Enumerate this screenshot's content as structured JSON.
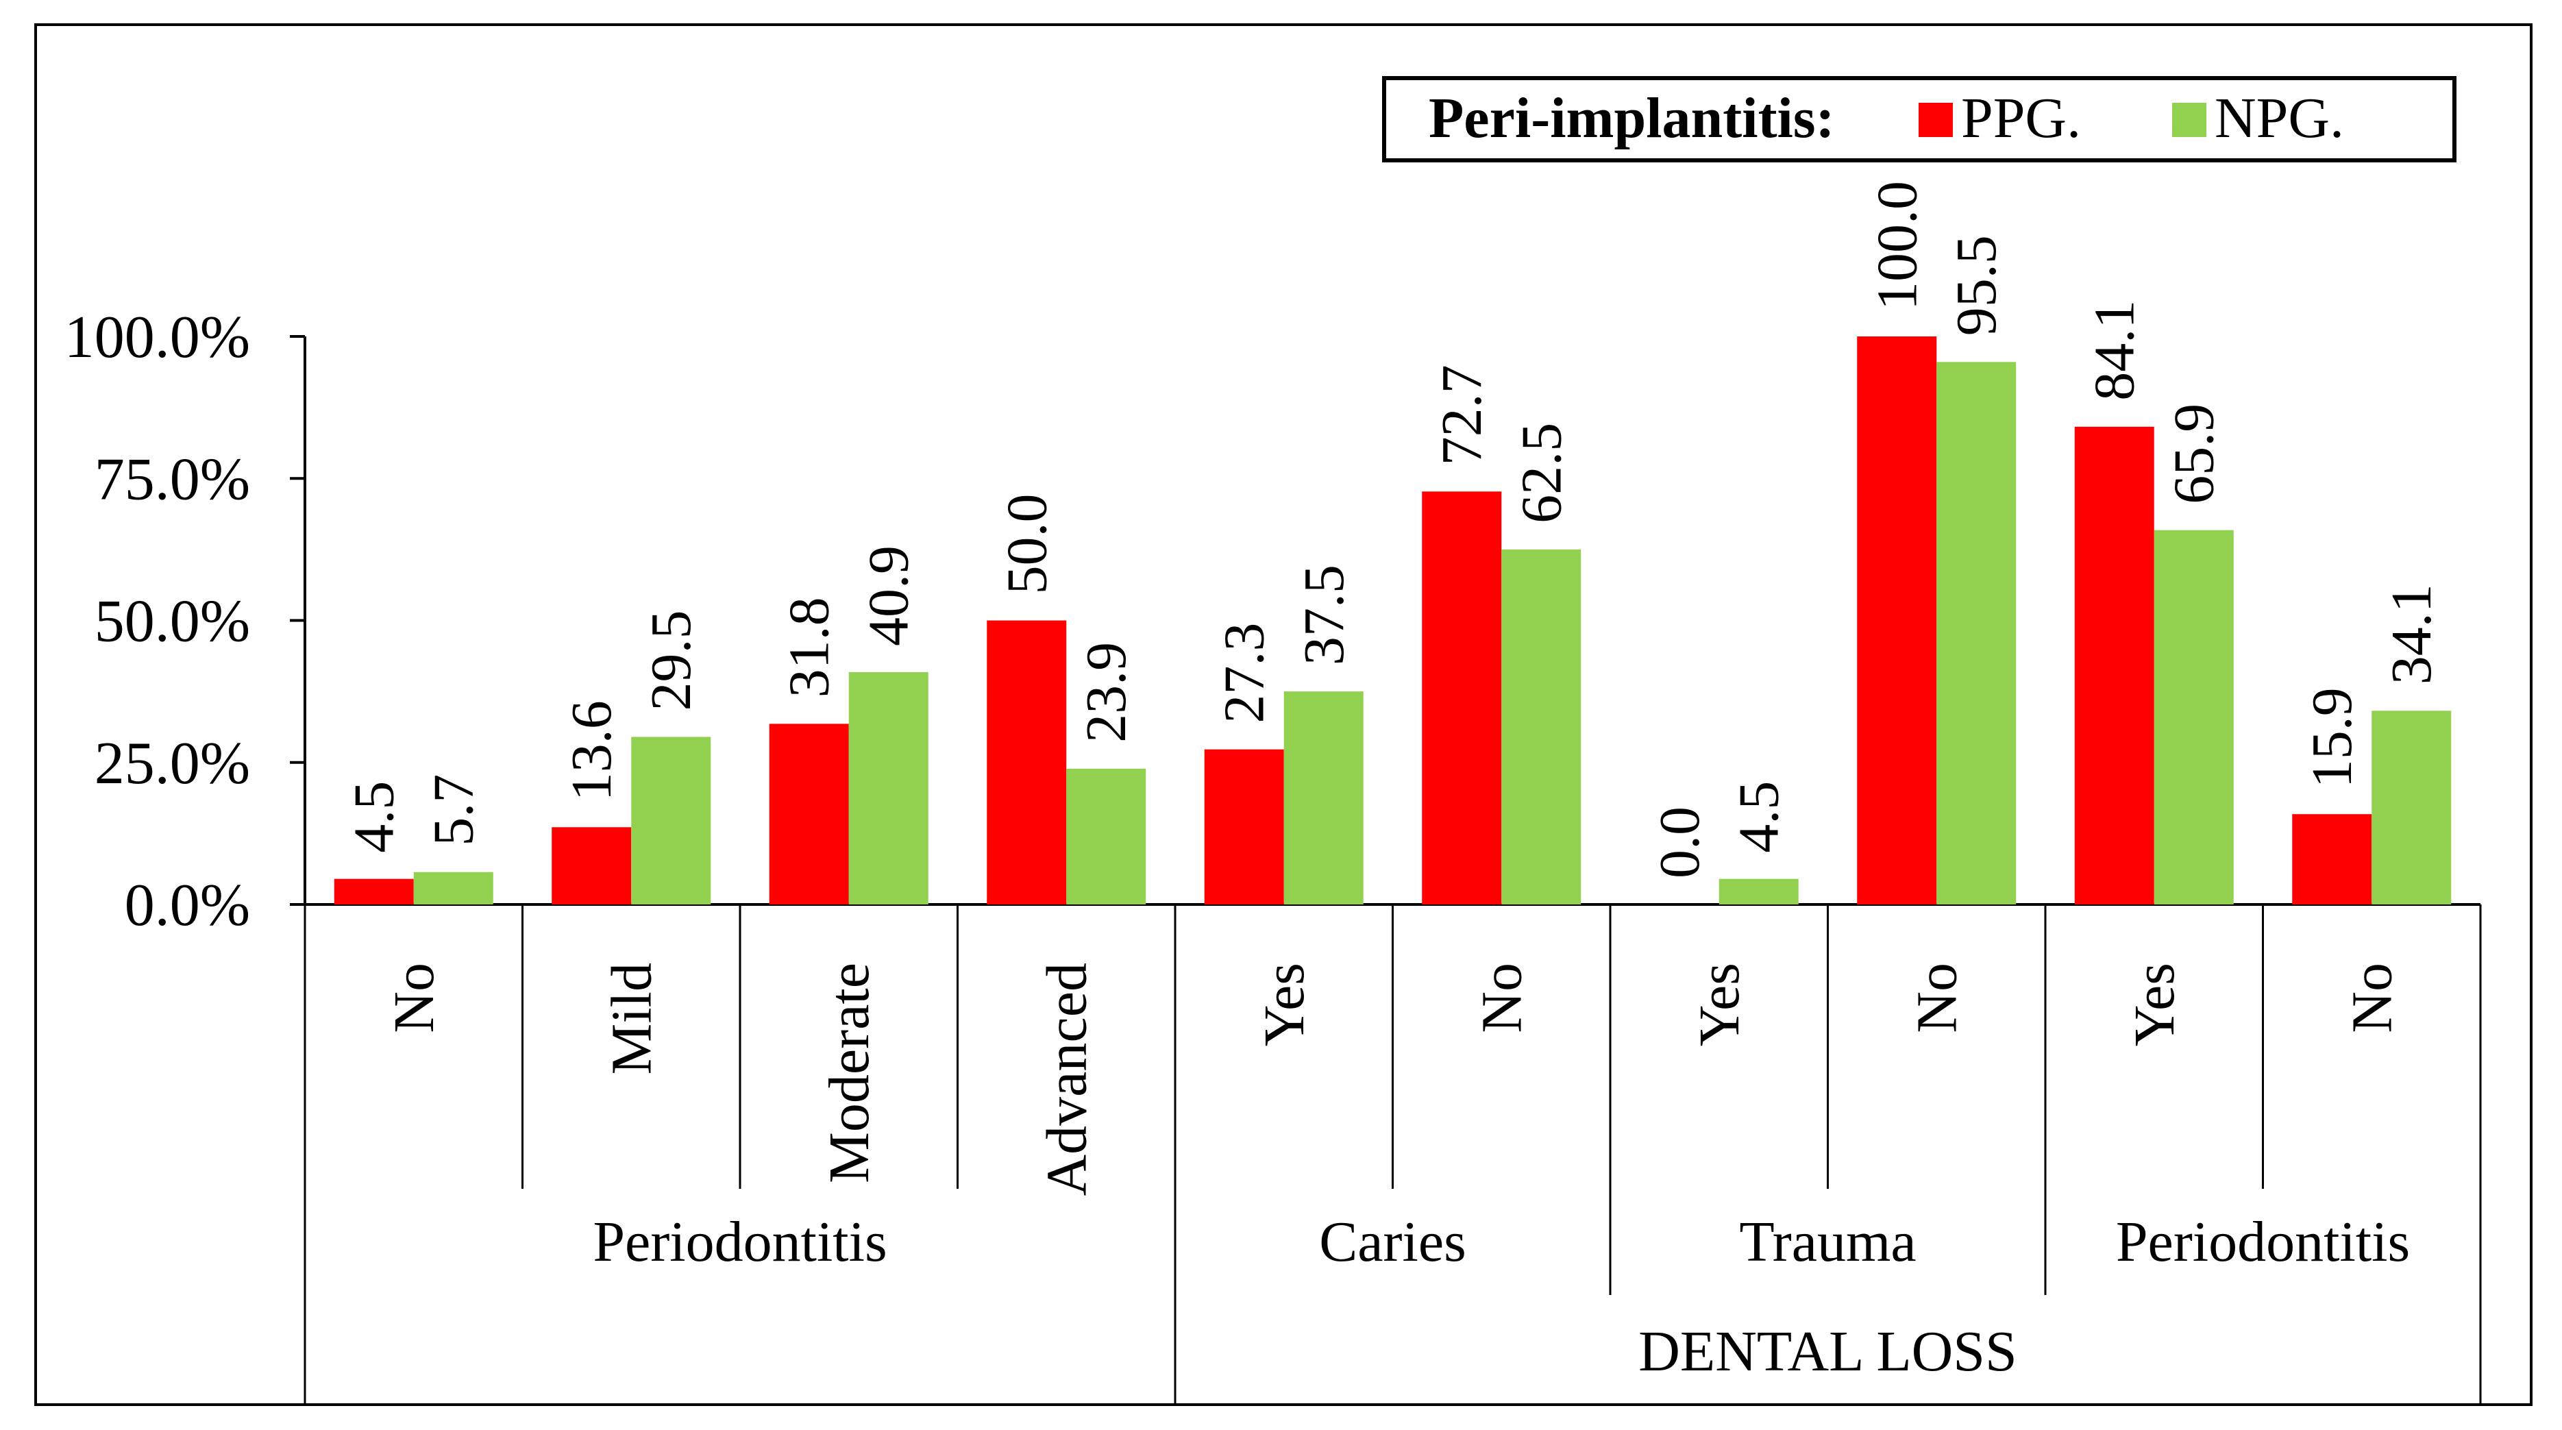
{
  "chart_data": {
    "type": "bar",
    "title": "",
    "ylabel": "",
    "ylim": [
      0,
      100
    ],
    "yticks": [
      {
        "value": 0,
        "label": "0.0%"
      },
      {
        "value": 25,
        "label": "25.0%"
      },
      {
        "value": 50,
        "label": "50.0%"
      },
      {
        "value": 75,
        "label": "75.0%"
      },
      {
        "value": 100,
        "label": "100.0%"
      }
    ],
    "categories": [
      "No",
      "Mild",
      "Moderate",
      "Advanced",
      "Yes",
      "No",
      "Yes",
      "No",
      "Yes",
      "No"
    ],
    "series": [
      {
        "name": "PPG.",
        "color": "#ff0000",
        "values": [
          4.5,
          13.6,
          31.8,
          50.0,
          27.3,
          72.7,
          0.0,
          100.0,
          84.1,
          15.9
        ],
        "labels": [
          "4.5",
          "13.6",
          "31.8",
          "50.0",
          "27.3",
          "72.7",
          "0.0",
          "100.0",
          "84.1",
          "15.9"
        ]
      },
      {
        "name": "NPG.",
        "color": "#92d050",
        "values": [
          5.7,
          29.5,
          40.9,
          23.9,
          37.5,
          62.5,
          4.5,
          95.5,
          65.9,
          34.1
        ],
        "labels": [
          "5.7",
          "29.5",
          "40.9",
          "23.9",
          "37.5",
          "62.5",
          "4.5",
          "95.5",
          "65.9",
          "34.1"
        ]
      }
    ],
    "group_level1": [
      {
        "label": "Periodontitis",
        "start": 0,
        "end": 3
      },
      {
        "label": "Caries",
        "start": 4,
        "end": 5
      },
      {
        "label": "Trauma",
        "start": 6,
        "end": 7
      },
      {
        "label": "Periodontitis",
        "start": 8,
        "end": 9
      }
    ],
    "group_level2": [
      {
        "label": "",
        "start": 0,
        "end": 3
      },
      {
        "label": "DENTAL LOSS",
        "start": 4,
        "end": 9
      }
    ],
    "legend": {
      "title": "Peri-implantitis:",
      "position": "top-right"
    }
  }
}
